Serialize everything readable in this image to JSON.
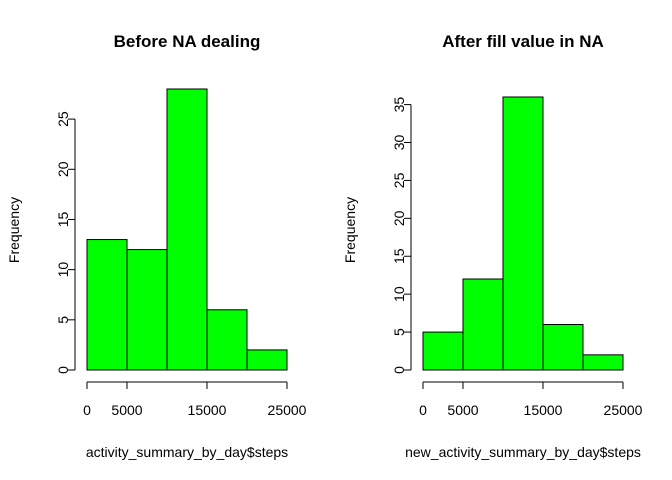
{
  "chart_data": [
    {
      "type": "bar",
      "title": "Before NA dealing",
      "xlabel": "activity_summary_by_day$steps",
      "ylabel": "Frequency",
      "bins": [
        [
          0,
          5000
        ],
        [
          5000,
          10000
        ],
        [
          10000,
          15000
        ],
        [
          15000,
          20000
        ],
        [
          20000,
          25000
        ]
      ],
      "values": [
        13,
        12,
        28,
        6,
        2
      ],
      "xlim": [
        0,
        25000
      ],
      "ylim": [
        0,
        28
      ],
      "x_ticks": [
        0,
        5000,
        15000,
        25000
      ],
      "x_tick_labels": [
        "0",
        "5000",
        "15000",
        "25000"
      ],
      "y_ticks": [
        0,
        5,
        10,
        15,
        20,
        25
      ],
      "y_tick_labels": [
        "0",
        "5",
        "10",
        "15",
        "20",
        "25"
      ],
      "grid": false,
      "bar_color": "#00ff00"
    },
    {
      "type": "bar",
      "title": "After fill value in NA",
      "xlabel": "new_activity_summary_by_day$steps",
      "ylabel": "Frequency",
      "bins": [
        [
          0,
          5000
        ],
        [
          5000,
          10000
        ],
        [
          10000,
          15000
        ],
        [
          15000,
          20000
        ],
        [
          20000,
          25000
        ]
      ],
      "values": [
        5,
        12,
        36,
        6,
        2
      ],
      "xlim": [
        0,
        25000
      ],
      "ylim": [
        0,
        36
      ],
      "x_ticks": [
        0,
        5000,
        15000,
        25000
      ],
      "x_tick_labels": [
        "0",
        "5000",
        "15000",
        "25000"
      ],
      "y_ticks": [
        0,
        5,
        10,
        15,
        20,
        25,
        30,
        35
      ],
      "y_tick_labels": [
        "0",
        "5",
        "10",
        "15",
        "20",
        "25",
        "30",
        "35"
      ],
      "grid": false,
      "bar_color": "#00ff00"
    }
  ]
}
